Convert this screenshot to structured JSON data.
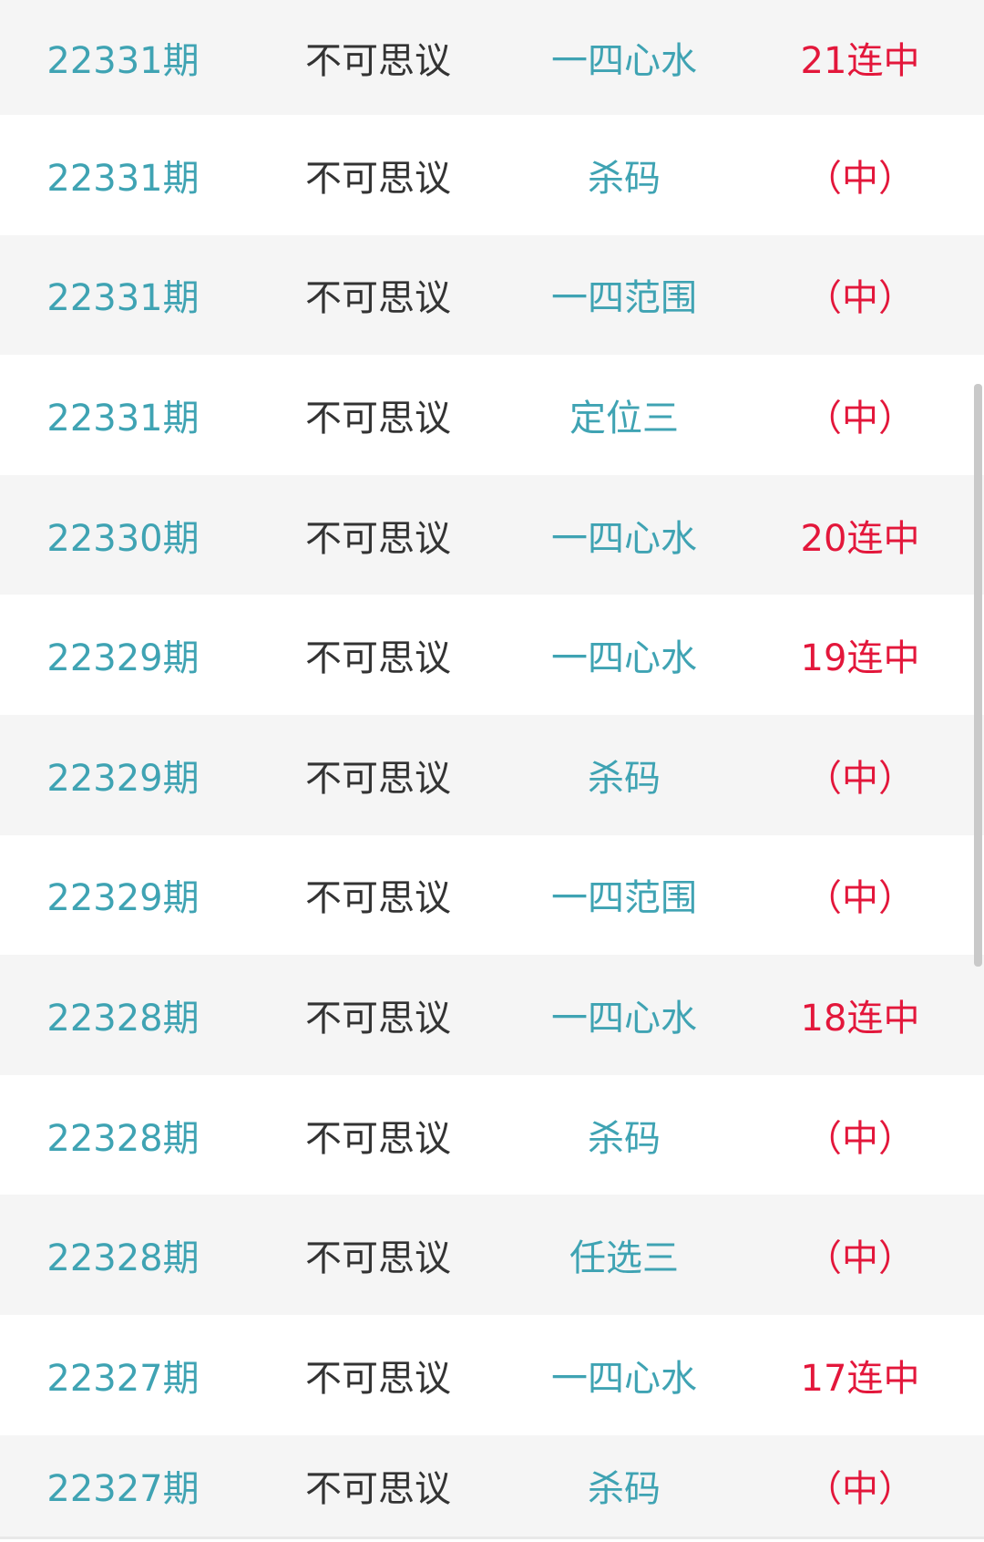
{
  "colors": {
    "issue": "#3fa3b3",
    "name": "#333333",
    "type": "#3fa3b3",
    "result": "#e3173b",
    "row_alt": "#f5f5f5"
  },
  "rows": [
    {
      "issue": "22331期",
      "name": "不可思议",
      "type": "一四心水",
      "result": "21连中"
    },
    {
      "issue": "22331期",
      "name": "不可思议",
      "type": "杀码",
      "result": "（中）"
    },
    {
      "issue": "22331期",
      "name": "不可思议",
      "type": "一四范围",
      "result": "（中）"
    },
    {
      "issue": "22331期",
      "name": "不可思议",
      "type": "定位三",
      "result": "（中）"
    },
    {
      "issue": "22330期",
      "name": "不可思议",
      "type": "一四心水",
      "result": "20连中"
    },
    {
      "issue": "22329期",
      "name": "不可思议",
      "type": "一四心水",
      "result": "19连中"
    },
    {
      "issue": "22329期",
      "name": "不可思议",
      "type": "杀码",
      "result": "（中）"
    },
    {
      "issue": "22329期",
      "name": "不可思议",
      "type": "一四范围",
      "result": "（中）"
    },
    {
      "issue": "22328期",
      "name": "不可思议",
      "type": "一四心水",
      "result": "18连中"
    },
    {
      "issue": "22328期",
      "name": "不可思议",
      "type": "杀码",
      "result": "（中）"
    },
    {
      "issue": "22328期",
      "name": "不可思议",
      "type": "任选三",
      "result": "（中）"
    },
    {
      "issue": "22327期",
      "name": "不可思议",
      "type": "一四心水",
      "result": "17连中"
    },
    {
      "issue": "22327期",
      "name": "不可思议",
      "type": "杀码",
      "result": "（中）"
    }
  ]
}
